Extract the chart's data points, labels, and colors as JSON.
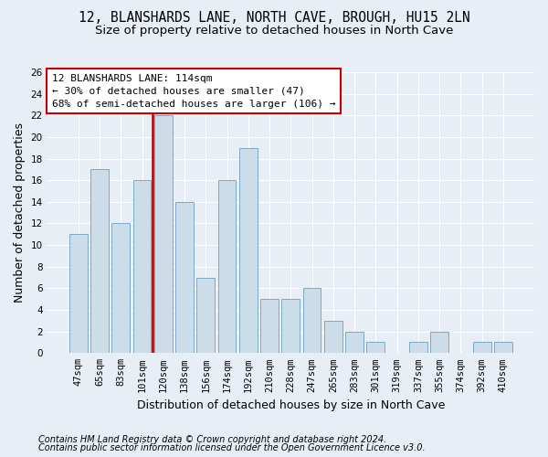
{
  "title": "12, BLANSHARDS LANE, NORTH CAVE, BROUGH, HU15 2LN",
  "subtitle": "Size of property relative to detached houses in North Cave",
  "xlabel": "Distribution of detached houses by size in North Cave",
  "ylabel": "Number of detached properties",
  "footer1": "Contains HM Land Registry data © Crown copyright and database right 2024.",
  "footer2": "Contains public sector information licensed under the Open Government Licence v3.0.",
  "categories": [
    "47sqm",
    "65sqm",
    "83sqm",
    "101sqm",
    "120sqm",
    "138sqm",
    "156sqm",
    "174sqm",
    "192sqm",
    "210sqm",
    "228sqm",
    "247sqm",
    "265sqm",
    "283sqm",
    "301sqm",
    "319sqm",
    "337sqm",
    "355sqm",
    "374sqm",
    "392sqm",
    "410sqm"
  ],
  "values": [
    11,
    17,
    12,
    16,
    22,
    14,
    7,
    16,
    19,
    5,
    5,
    6,
    3,
    2,
    1,
    0,
    1,
    2,
    0,
    1,
    1
  ],
  "bar_color": "#ccdce8",
  "bar_edge_color": "#7aaac8",
  "vline_color": "#aa0000",
  "vline_x_index": 4,
  "annotation_line1": "12 BLANSHARDS LANE: 114sqm",
  "annotation_line2": "← 30% of detached houses are smaller (47)",
  "annotation_line3": "68% of semi-detached houses are larger (106) →",
  "annotation_box_color": "white",
  "annotation_box_edge": "#cc0000",
  "ylim": [
    0,
    26
  ],
  "yticks": [
    0,
    2,
    4,
    6,
    8,
    10,
    12,
    14,
    16,
    18,
    20,
    22,
    24,
    26
  ],
  "background_color": "#e8eef5",
  "grid_color": "white",
  "title_fontsize": 10.5,
  "subtitle_fontsize": 9.5,
  "axis_label_fontsize": 9,
  "tick_fontsize": 7.5,
  "annotation_fontsize": 8,
  "footer_fontsize": 7
}
